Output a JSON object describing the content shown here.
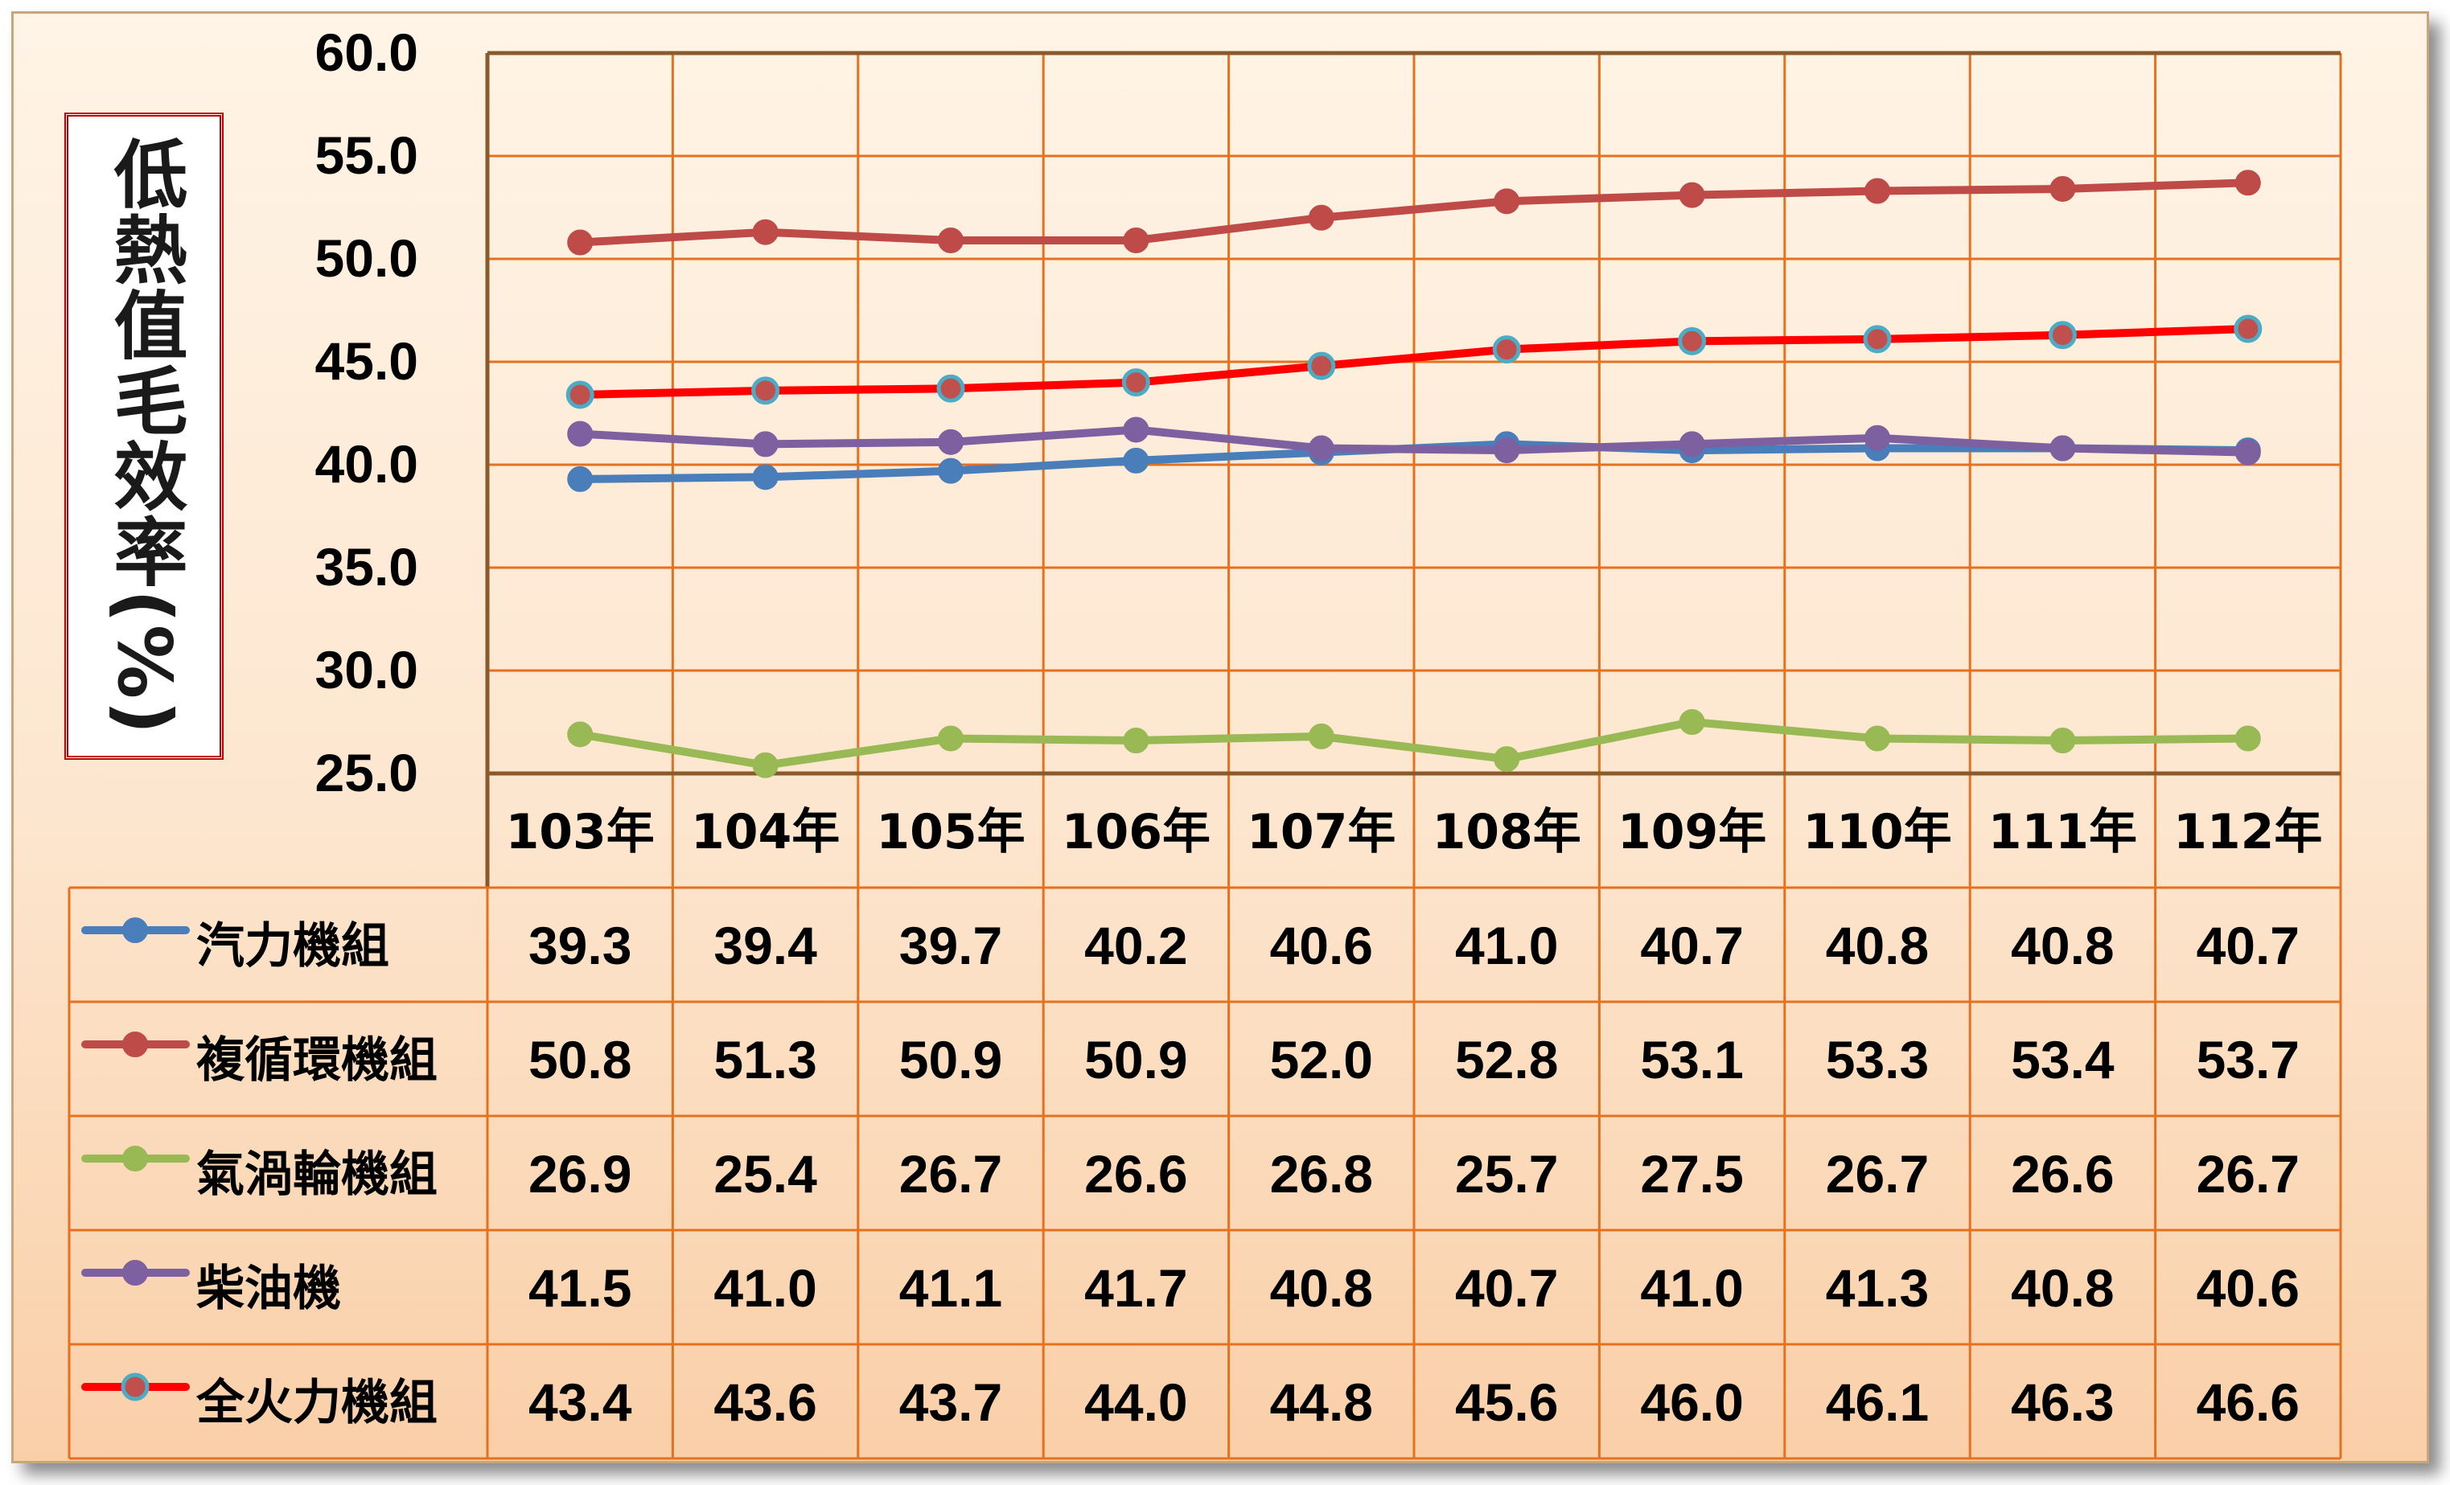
{
  "chart_data": {
    "type": "line",
    "ylabel": "低熱值毛效率(%)",
    "ylim": [
      25.0,
      60.0
    ],
    "y_ticks": [
      "60.0",
      "55.0",
      "50.0",
      "45.0",
      "40.0",
      "35.0",
      "30.0",
      "25.0"
    ],
    "grid": true,
    "legend": "data-table-below",
    "categories": [
      "103年",
      "104年",
      "105年",
      "106年",
      "107年",
      "108年",
      "109年",
      "110年",
      "111年",
      "112年"
    ],
    "series": [
      {
        "name": "汽力機組",
        "color": "#4a7ebb",
        "marker_fill": "#4a7ebb",
        "values": [
          39.3,
          39.4,
          39.7,
          40.2,
          40.6,
          41.0,
          40.7,
          40.8,
          40.8,
          40.7
        ],
        "labels": [
          "39.3",
          "39.4",
          "39.7",
          "40.2",
          "40.6",
          "41.0",
          "40.7",
          "40.8",
          "40.8",
          "40.7"
        ]
      },
      {
        "name": "複循環機組",
        "color": "#be4b48",
        "marker_fill": "#be4b48",
        "values": [
          50.8,
          51.3,
          50.9,
          50.9,
          52.0,
          52.8,
          53.1,
          53.3,
          53.4,
          53.7
        ],
        "labels": [
          "50.8",
          "51.3",
          "50.9",
          "50.9",
          "52.0",
          "52.8",
          "53.1",
          "53.3",
          "53.4",
          "53.7"
        ]
      },
      {
        "name": "氣渦輪機組",
        "color": "#98b954",
        "marker_fill": "#98b954",
        "values": [
          26.9,
          25.4,
          26.7,
          26.6,
          26.8,
          25.7,
          27.5,
          26.7,
          26.6,
          26.7
        ],
        "labels": [
          "26.9",
          "25.4",
          "26.7",
          "26.6",
          "26.8",
          "25.7",
          "27.5",
          "26.7",
          "26.6",
          "26.7"
        ]
      },
      {
        "name": "柴油機",
        "color": "#7d60a0",
        "marker_fill": "#7d60a0",
        "values": [
          41.5,
          41.0,
          41.1,
          41.7,
          40.8,
          40.7,
          41.0,
          41.3,
          40.8,
          40.6
        ],
        "labels": [
          "41.5",
          "41.0",
          "41.1",
          "41.7",
          "40.8",
          "40.7",
          "41.0",
          "41.3",
          "40.8",
          "40.6"
        ]
      },
      {
        "name": "全火力機組",
        "color": "#ff0000",
        "marker_fill": "#c0504d",
        "marker_edge": "#4bacc6",
        "values": [
          43.4,
          43.6,
          43.7,
          44.0,
          44.8,
          45.6,
          46.0,
          46.1,
          46.3,
          46.6
        ],
        "labels": [
          "43.4",
          "43.6",
          "43.7",
          "44.0",
          "44.8",
          "45.6",
          "46.0",
          "46.1",
          "46.3",
          "46.6"
        ]
      }
    ]
  }
}
